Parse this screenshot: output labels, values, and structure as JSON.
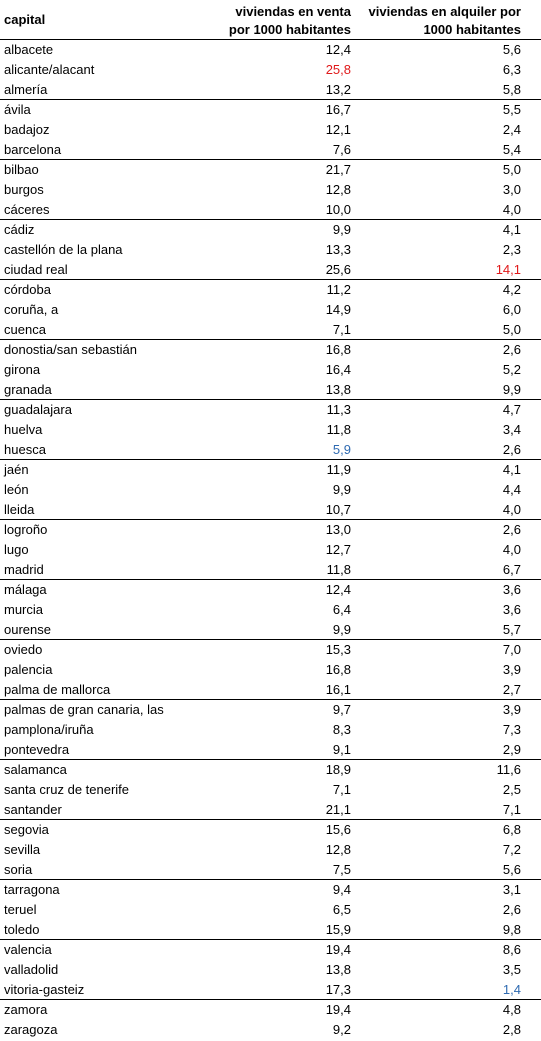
{
  "table": {
    "headers": {
      "capital": "capital",
      "venta_line1": "viviendas en venta",
      "venta_line2": "por 1000 habitantes",
      "alquiler_line1": "viviendas en alquiler por",
      "alquiler_line2": "1000 habitantes"
    },
    "highlight_colors": {
      "red": "#e0191a",
      "blue": "#2e6ab1"
    },
    "rows": [
      {
        "capital": "albacete",
        "venta": "12,4",
        "alquiler": "5,6"
      },
      {
        "capital": "alicante/alacant",
        "venta": "25,8",
        "alquiler": "6,3",
        "venta_highlight": "red"
      },
      {
        "capital": "almería",
        "venta": "13,2",
        "alquiler": "5,8"
      },
      {
        "capital": "ávila",
        "venta": "16,7",
        "alquiler": "5,5"
      },
      {
        "capital": "badajoz",
        "venta": "12,1",
        "alquiler": "2,4"
      },
      {
        "capital": "barcelona",
        "venta": "7,6",
        "alquiler": "5,4"
      },
      {
        "capital": "bilbao",
        "venta": "21,7",
        "alquiler": "5,0"
      },
      {
        "capital": "burgos",
        "venta": "12,8",
        "alquiler": "3,0"
      },
      {
        "capital": "cáceres",
        "venta": "10,0",
        "alquiler": "4,0"
      },
      {
        "capital": "cádiz",
        "venta": "9,9",
        "alquiler": "4,1"
      },
      {
        "capital": "castellón de la plana",
        "venta": "13,3",
        "alquiler": "2,3"
      },
      {
        "capital": "ciudad real",
        "venta": "25,6",
        "alquiler": "14,1",
        "alquiler_highlight": "red"
      },
      {
        "capital": "córdoba",
        "venta": "11,2",
        "alquiler": "4,2"
      },
      {
        "capital": "coruña, a",
        "venta": "14,9",
        "alquiler": "6,0"
      },
      {
        "capital": "cuenca",
        "venta": "7,1",
        "alquiler": "5,0"
      },
      {
        "capital": "donostia/san sebastián",
        "venta": "16,8",
        "alquiler": "2,6"
      },
      {
        "capital": "girona",
        "venta": "16,4",
        "alquiler": "5,2"
      },
      {
        "capital": "granada",
        "venta": "13,8",
        "alquiler": "9,9"
      },
      {
        "capital": "guadalajara",
        "venta": "11,3",
        "alquiler": "4,7"
      },
      {
        "capital": "huelva",
        "venta": "11,8",
        "alquiler": "3,4"
      },
      {
        "capital": "huesca",
        "venta": "5,9",
        "alquiler": "2,6",
        "venta_highlight": "blue"
      },
      {
        "capital": "jaén",
        "venta": "11,9",
        "alquiler": "4,1"
      },
      {
        "capital": "león",
        "venta": "9,9",
        "alquiler": "4,4"
      },
      {
        "capital": "lleida",
        "venta": "10,7",
        "alquiler": "4,0"
      },
      {
        "capital": "logroño",
        "venta": "13,0",
        "alquiler": "2,6"
      },
      {
        "capital": "lugo",
        "venta": "12,7",
        "alquiler": "4,0"
      },
      {
        "capital": "madrid",
        "venta": "11,8",
        "alquiler": "6,7"
      },
      {
        "capital": "málaga",
        "venta": "12,4",
        "alquiler": "3,6"
      },
      {
        "capital": "murcia",
        "venta": "6,4",
        "alquiler": "3,6"
      },
      {
        "capital": "ourense",
        "venta": "9,9",
        "alquiler": "5,7"
      },
      {
        "capital": "oviedo",
        "venta": "15,3",
        "alquiler": "7,0"
      },
      {
        "capital": "palencia",
        "venta": "16,8",
        "alquiler": "3,9"
      },
      {
        "capital": "palma de mallorca",
        "venta": "16,1",
        "alquiler": "2,7"
      },
      {
        "capital": "palmas de gran canaria, las",
        "venta": "9,7",
        "alquiler": "3,9"
      },
      {
        "capital": "pamplona/iruña",
        "venta": "8,3",
        "alquiler": "7,3"
      },
      {
        "capital": "pontevedra",
        "venta": "9,1",
        "alquiler": "2,9"
      },
      {
        "capital": "salamanca",
        "venta": "18,9",
        "alquiler": "11,6"
      },
      {
        "capital": "santa cruz de tenerife",
        "venta": "7,1",
        "alquiler": "2,5"
      },
      {
        "capital": "santander",
        "venta": "21,1",
        "alquiler": "7,1"
      },
      {
        "capital": "segovia",
        "venta": "15,6",
        "alquiler": "6,8"
      },
      {
        "capital": "sevilla",
        "venta": "12,8",
        "alquiler": "7,2"
      },
      {
        "capital": "soria",
        "venta": "7,5",
        "alquiler": "5,6"
      },
      {
        "capital": "tarragona",
        "venta": "9,4",
        "alquiler": "3,1"
      },
      {
        "capital": "teruel",
        "venta": "6,5",
        "alquiler": "2,6"
      },
      {
        "capital": "toledo",
        "venta": "15,9",
        "alquiler": "9,8"
      },
      {
        "capital": "valencia",
        "venta": "19,4",
        "alquiler": "8,6"
      },
      {
        "capital": "valladolid",
        "venta": "13,8",
        "alquiler": "3,5"
      },
      {
        "capital": "vitoria-gasteiz",
        "venta": "17,3",
        "alquiler": "1,4",
        "alquiler_highlight": "blue"
      },
      {
        "capital": "zamora",
        "venta": "19,4",
        "alquiler": "4,8"
      },
      {
        "capital": "zaragoza",
        "venta": "9,2",
        "alquiler": "2,8"
      }
    ]
  }
}
